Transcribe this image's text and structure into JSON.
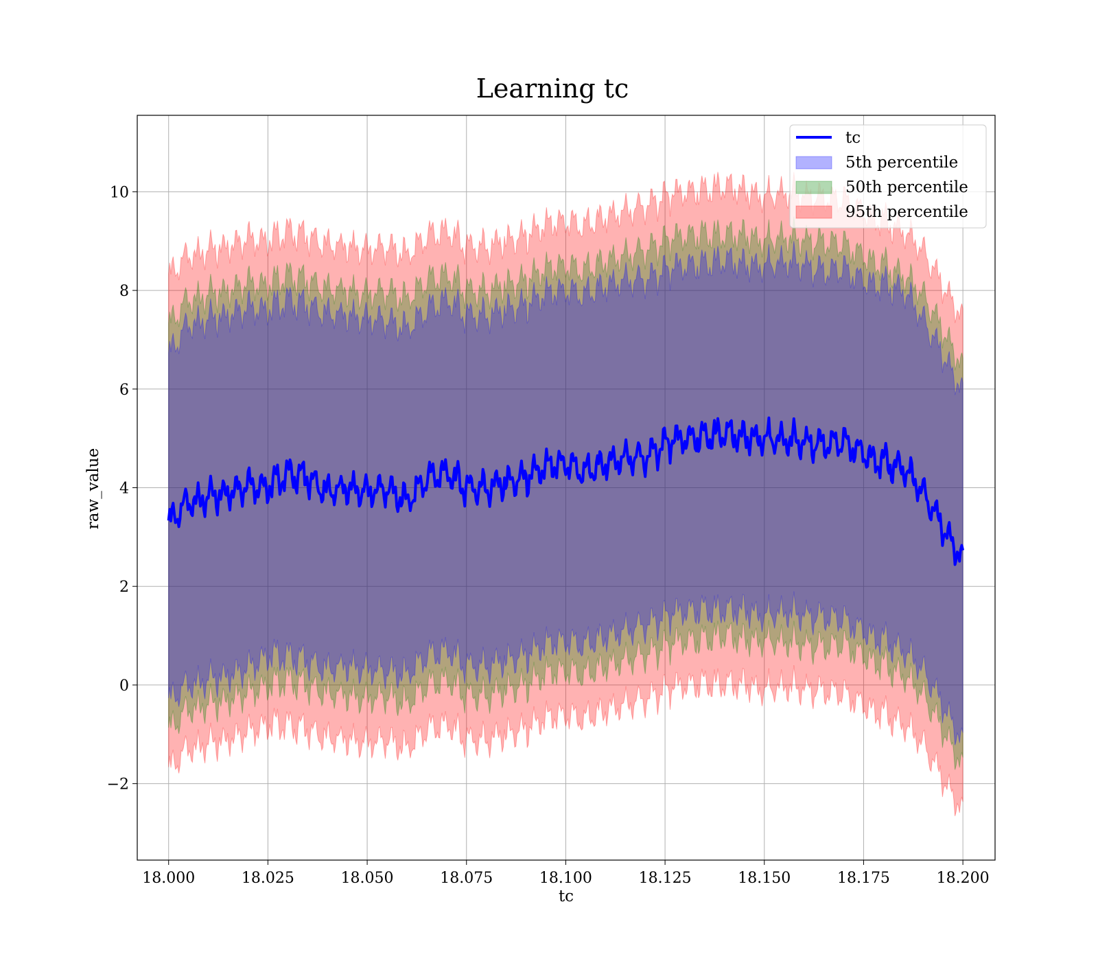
{
  "chart_data": {
    "type": "line",
    "title": "Learning tc",
    "xlabel": "tc",
    "ylabel": "raw_value",
    "xlim": [
      17.9921,
      18.2081
    ],
    "ylim": [
      -3.55,
      11.55
    ],
    "xticks": [
      18.0,
      18.025,
      18.05,
      18.075,
      18.1,
      18.125,
      18.15,
      18.175,
      18.2
    ],
    "xtick_labels": [
      "18.000",
      "18.025",
      "18.050",
      "18.075",
      "18.100",
      "18.125",
      "18.150",
      "18.175",
      "18.200"
    ],
    "yticks": [
      -2,
      0,
      2,
      4,
      6,
      8,
      10
    ],
    "ytick_labels": [
      "−2",
      "0",
      "2",
      "4",
      "6",
      "8",
      "10"
    ],
    "grid": true,
    "legend_position": "top-right",
    "colors": {
      "line": "#0000ff",
      "p5": "#0000ff",
      "p50": "#008000",
      "p95": "#ff0000"
    },
    "x": [
      18.0,
      18.005,
      18.01,
      18.015,
      18.02,
      18.025,
      18.03,
      18.035,
      18.04,
      18.045,
      18.05,
      18.055,
      18.06,
      18.065,
      18.07,
      18.075,
      18.08,
      18.085,
      18.09,
      18.095,
      18.1,
      18.105,
      18.11,
      18.115,
      18.12,
      18.125,
      18.13,
      18.135,
      18.14,
      18.145,
      18.15,
      18.155,
      18.16,
      18.165,
      18.17,
      18.175,
      18.18,
      18.185,
      18.19,
      18.195,
      18.2
    ],
    "series": [
      {
        "name": "tc",
        "kind": "line",
        "values": [
          3.3,
          3.7,
          3.8,
          3.9,
          4.1,
          4.0,
          4.3,
          4.2,
          3.9,
          4.0,
          3.9,
          4.0,
          3.7,
          4.2,
          4.3,
          4.0,
          4.0,
          4.1,
          4.2,
          4.4,
          4.5,
          4.3,
          4.5,
          4.6,
          4.6,
          4.9,
          5.0,
          5.0,
          5.1,
          5.0,
          5.0,
          5.0,
          4.9,
          4.9,
          4.9,
          4.7,
          4.5,
          4.4,
          3.9,
          3.2,
          2.5
        ]
      },
      {
        "name": "5th percentile",
        "kind": "band",
        "lower": [
          -0.3,
          0.0,
          0.1,
          0.2,
          0.4,
          0.6,
          0.6,
          0.5,
          0.3,
          0.4,
          0.3,
          0.3,
          0.2,
          0.6,
          0.7,
          0.4,
          0.4,
          0.5,
          0.6,
          0.8,
          0.9,
          0.8,
          1.0,
          1.1,
          1.2,
          1.4,
          1.5,
          1.5,
          1.5,
          1.5,
          1.4,
          1.5,
          1.4,
          1.4,
          1.3,
          1.1,
          0.9,
          0.7,
          0.3,
          -0.4,
          -1.2
        ],
        "upper": [
          6.7,
          7.3,
          7.4,
          7.5,
          7.7,
          7.6,
          7.8,
          7.7,
          7.5,
          7.5,
          7.4,
          7.4,
          7.2,
          7.6,
          7.8,
          7.5,
          7.5,
          7.6,
          7.7,
          7.9,
          8.0,
          7.9,
          8.1,
          8.2,
          8.2,
          8.4,
          8.5,
          8.5,
          8.6,
          8.5,
          8.5,
          8.6,
          8.5,
          8.4,
          8.4,
          8.2,
          8.1,
          8.0,
          7.4,
          6.7,
          5.9
        ]
      },
      {
        "name": "50th percentile",
        "kind": "band",
        "lower": [
          -0.9,
          -0.5,
          -0.4,
          -0.3,
          -0.1,
          0.0,
          0.1,
          0.0,
          -0.2,
          -0.2,
          -0.3,
          -0.2,
          -0.4,
          0.0,
          0.1,
          -0.2,
          -0.2,
          -0.1,
          0.0,
          0.2,
          0.3,
          0.2,
          0.4,
          0.5,
          0.6,
          0.8,
          0.9,
          0.9,
          1.0,
          0.9,
          0.9,
          0.9,
          0.8,
          0.8,
          0.8,
          0.6,
          0.4,
          0.2,
          -0.2,
          -0.9,
          -1.7
        ],
        "upper": [
          7.3,
          7.8,
          7.9,
          8.0,
          8.2,
          8.1,
          8.3,
          8.2,
          8.0,
          8.0,
          7.9,
          8.0,
          7.8,
          8.2,
          8.3,
          8.0,
          8.0,
          8.1,
          8.2,
          8.4,
          8.5,
          8.4,
          8.6,
          8.7,
          8.8,
          9.0,
          9.1,
          9.1,
          9.1,
          9.1,
          9.0,
          9.1,
          9.0,
          9.0,
          8.9,
          8.7,
          8.5,
          8.3,
          7.9,
          7.2,
          6.4
        ]
      },
      {
        "name": "95th percentile",
        "kind": "band",
        "lower": [
          -1.7,
          -1.3,
          -1.2,
          -1.1,
          -0.9,
          -0.8,
          -0.8,
          -0.9,
          -1.1,
          -1.1,
          -1.2,
          -1.1,
          -1.3,
          -0.9,
          -0.8,
          -1.1,
          -1.1,
          -1.0,
          -0.9,
          -0.7,
          -0.6,
          -0.7,
          -0.5,
          -0.4,
          -0.3,
          -0.1,
          0.0,
          0.0,
          0.0,
          0.0,
          -0.1,
          0.0,
          -0.1,
          -0.1,
          -0.2,
          -0.4,
          -0.6,
          -0.8,
          -1.2,
          -1.9,
          -2.6
        ],
        "upper": [
          8.3,
          8.7,
          8.8,
          8.9,
          9.1,
          9.0,
          9.2,
          9.1,
          8.9,
          8.9,
          8.8,
          8.9,
          8.7,
          9.1,
          9.2,
          8.9,
          8.9,
          9.0,
          9.1,
          9.3,
          9.4,
          9.3,
          9.5,
          9.6,
          9.7,
          9.9,
          10.0,
          10.0,
          10.1,
          10.0,
          9.9,
          10.0,
          9.9,
          9.9,
          9.8,
          9.6,
          9.4,
          9.2,
          8.8,
          8.1,
          7.4
        ]
      }
    ]
  }
}
